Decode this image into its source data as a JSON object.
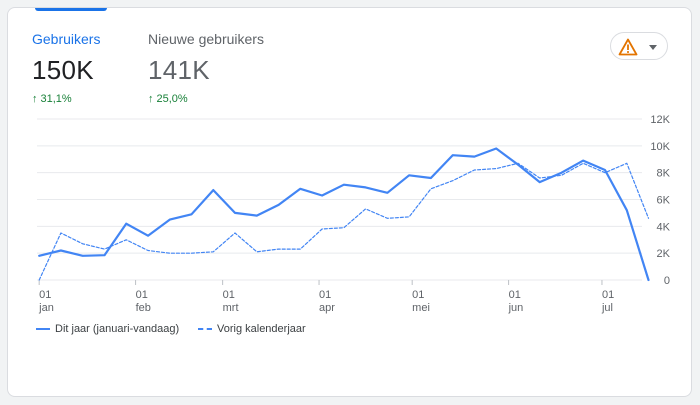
{
  "metrics": [
    {
      "label": "Gebruikers",
      "value": "150K",
      "change": "31,1%"
    },
    {
      "label": "Nieuwe gebruikers",
      "value": "141K",
      "change": "25,0%"
    }
  ],
  "icons": {
    "warning": "warning-triangle-icon",
    "dropdown": "chevron-down-icon",
    "trend": "arrow-up-icon"
  },
  "colors": {
    "accent": "#1a73e8",
    "series": "#4285f4",
    "positive": "#188038",
    "warning": "#e37400"
  },
  "chart_data": {
    "type": "line",
    "y_ticks": [
      "12K",
      "10K",
      "8K",
      "6K",
      "4K",
      "2K",
      "0"
    ],
    "ylim": [
      0,
      12000
    ],
    "x_ticks": [
      {
        "day": "01",
        "month": "jan",
        "week": 0
      },
      {
        "day": "01",
        "month": "feb",
        "week": 4.43
      },
      {
        "day": "01",
        "month": "mrt",
        "week": 8.43
      },
      {
        "day": "01",
        "month": "apr",
        "week": 12.86
      },
      {
        "day": "01",
        "month": "mei",
        "week": 17.14
      },
      {
        "day": "01",
        "month": "jun",
        "week": 21.57
      },
      {
        "day": "01",
        "month": "jul",
        "week": 25.86
      }
    ],
    "x_range": [
      -0.1,
      27.7
    ],
    "grid": true,
    "legend_position": "bottom-left",
    "series": [
      {
        "name": "Dit jaar (januari-vandaag)",
        "style": "solid",
        "values": [
          1800,
          2200,
          1800,
          1850,
          4200,
          3300,
          4500,
          4900,
          6700,
          5000,
          4800,
          5600,
          6800,
          6300,
          7100,
          6900,
          6500,
          7800,
          7600,
          9300,
          9200,
          9800,
          8600,
          7300,
          8000,
          8900,
          8200,
          5200,
          0
        ]
      },
      {
        "name": "Vorig kalenderjaar",
        "style": "dashed",
        "values": [
          0,
          3500,
          2700,
          2300,
          3000,
          2200,
          2000,
          2000,
          2100,
          3500,
          2100,
          2300,
          2300,
          3800,
          3900,
          5300,
          4600,
          4700,
          6800,
          7400,
          8200,
          8300,
          8700,
          7600,
          7800,
          8700,
          8000,
          8700,
          4600
        ]
      }
    ]
  }
}
